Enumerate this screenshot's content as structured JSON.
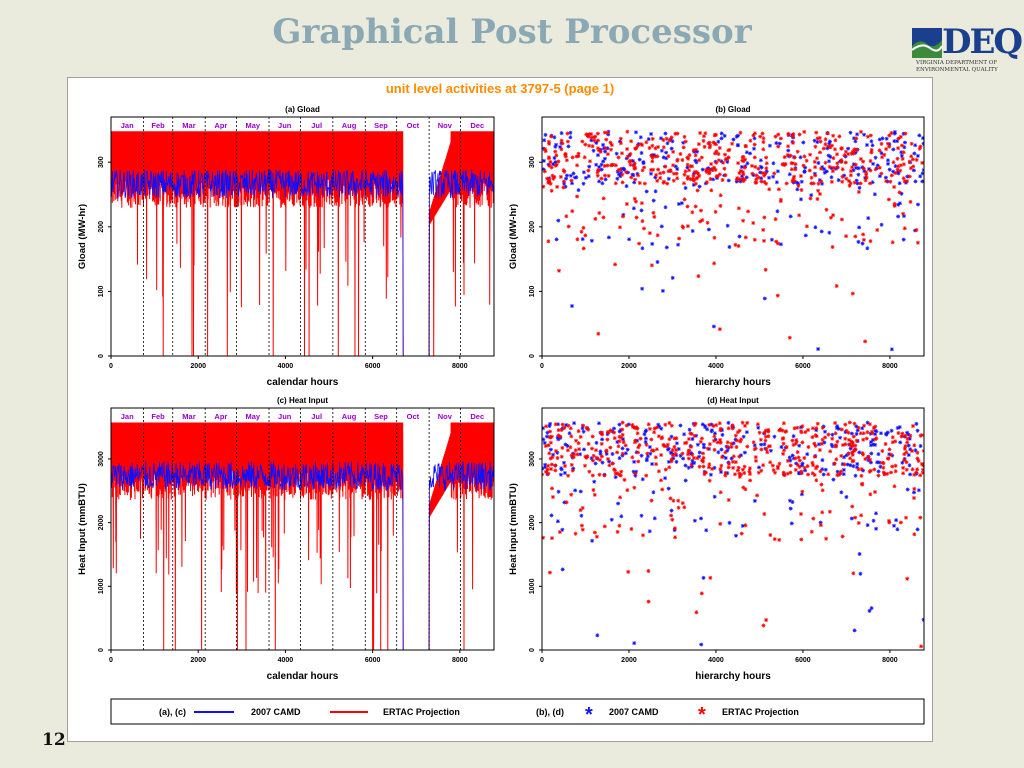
{
  "slide": {
    "title": "Graphical Post Processor",
    "page_number": "12"
  },
  "logo": {
    "text": "DEQ",
    "subtitle_line1": "VIRGINIA DEPARTMENT OF",
    "subtitle_line2": "ENVIRONMENTAL QUALITY",
    "colors": {
      "blue": "#1b3f8f",
      "green": "#3c8b3c"
    }
  },
  "figure": {
    "title": "unit level activities at  3797-5  (page 1)",
    "title_color": "#ff8c00"
  },
  "colors": {
    "camd": "#1010ff",
    "ertac": "#ff0000",
    "month_label": "#9a00cc"
  },
  "chart_data": [
    {
      "id": "a",
      "type": "line",
      "title": "(a) Gload",
      "xlabel": "calendar hours",
      "ylabel": "Gload (MW-hr)",
      "xlim": [
        0,
        8784
      ],
      "ylim": [
        0,
        370
      ],
      "xticks": [
        0,
        2000,
        4000,
        6000,
        8000
      ],
      "yticks": [
        0,
        100,
        200,
        300
      ],
      "month_labels": [
        "Jan",
        "Feb",
        "Mar",
        "Apr",
        "May",
        "Jun",
        "Jul",
        "Aug",
        "Sep",
        "Oct",
        "Nov",
        "Dec"
      ],
      "month_boundaries": [
        744,
        1416,
        2160,
        2880,
        3624,
        4344,
        5088,
        5832,
        6552,
        7296,
        8016
      ],
      "series": [
        {
          "name": "2007 CAMD",
          "style": "line"
        },
        {
          "name": "ERTAC Projection",
          "style": "line"
        }
      ]
    },
    {
      "id": "b",
      "type": "scatter",
      "title": "(b) Gload",
      "xlabel": "hierarchy hours",
      "ylabel": "Gload (MW-hr)",
      "xlim": [
        0,
        8784
      ],
      "ylim": [
        0,
        370
      ],
      "xticks": [
        0,
        2000,
        4000,
        6000,
        8000
      ],
      "yticks": [
        0,
        100,
        200,
        300
      ],
      "series": [
        {
          "name": "2007 CAMD",
          "style": "star"
        },
        {
          "name": "ERTAC Projection",
          "style": "star"
        }
      ]
    },
    {
      "id": "c",
      "type": "line",
      "title": "(c) Heat Input",
      "xlabel": "calendar hours",
      "ylabel": "Heat Input (mmBTU)",
      "xlim": [
        0,
        8784
      ],
      "ylim": [
        0,
        3800
      ],
      "xticks": [
        0,
        2000,
        4000,
        6000,
        8000
      ],
      "yticks": [
        0,
        1000,
        2000,
        3000
      ],
      "month_labels": [
        "Jan",
        "Feb",
        "Mar",
        "Apr",
        "May",
        "Jun",
        "Jul",
        "Aug",
        "Sep",
        "Oct",
        "Nov",
        "Dec"
      ],
      "month_boundaries": [
        744,
        1416,
        2160,
        2880,
        3624,
        4344,
        5088,
        5832,
        6552,
        7296,
        8016
      ],
      "series": [
        {
          "name": "2007 CAMD",
          "style": "line"
        },
        {
          "name": "ERTAC Projection",
          "style": "line"
        }
      ]
    },
    {
      "id": "d",
      "type": "scatter",
      "title": "(d) Heat Input",
      "xlabel": "hierarchy hours",
      "ylabel": "Heat Input (mmBTU)",
      "xlim": [
        0,
        8784
      ],
      "ylim": [
        0,
        3800
      ],
      "xticks": [
        0,
        2000,
        4000,
        6000,
        8000
      ],
      "yticks": [
        0,
        1000,
        2000,
        3000
      ],
      "series": [
        {
          "name": "2007 CAMD",
          "style": "star"
        },
        {
          "name": "ERTAC Projection",
          "style": "star"
        }
      ]
    }
  ],
  "legend": {
    "group1_label": "(a), (c)",
    "group2_label": "(b), (d)",
    "camd": "2007 CAMD",
    "ertac": "ERTAC Projection",
    "star_glyph": "*"
  }
}
